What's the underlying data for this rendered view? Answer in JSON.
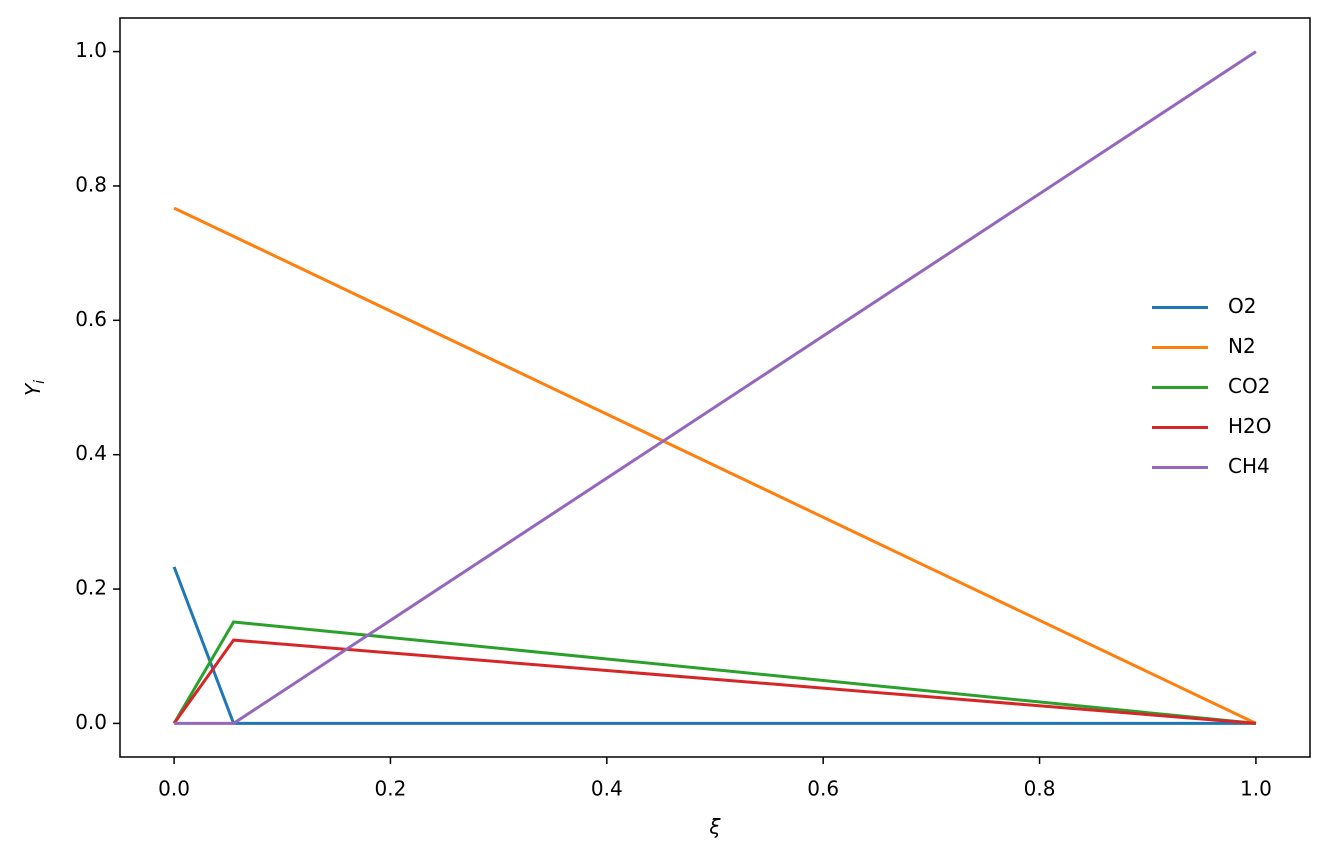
{
  "chart_data": {
    "type": "line",
    "xlabel": "ξ",
    "ylabel": "Y",
    "ylabel_subscript": "i",
    "x": [
      0,
      0.055,
      1
    ],
    "series": [
      {
        "name": "O2",
        "color": "#1f77b4",
        "values": [
          0.233,
          0,
          0
        ]
      },
      {
        "name": "N2",
        "color": "#ff7f0e",
        "values": [
          0.767,
          0.725,
          0
        ]
      },
      {
        "name": "CO2",
        "color": "#2ca02c",
        "values": [
          0,
          0.151,
          0
        ]
      },
      {
        "name": "H2O",
        "color": "#d62728",
        "values": [
          0,
          0.124,
          0
        ]
      },
      {
        "name": "CH4",
        "color": "#9467bd",
        "values": [
          0,
          0,
          1
        ]
      }
    ],
    "xlim": [
      -0.05,
      1.05
    ],
    "ylim": [
      -0.05,
      1.05
    ],
    "xticks": [
      {
        "value": 0,
        "label": "0.0"
      },
      0.2,
      0.4,
      0.6,
      0.8,
      {
        "value": 1,
        "label": "1.0"
      }
    ],
    "yticks": [
      {
        "value": 0,
        "label": "0.0"
      },
      0.2,
      0.4,
      0.6,
      0.8,
      {
        "value": 1,
        "label": "1.0"
      }
    ],
    "grid": false,
    "legend": "center right"
  }
}
